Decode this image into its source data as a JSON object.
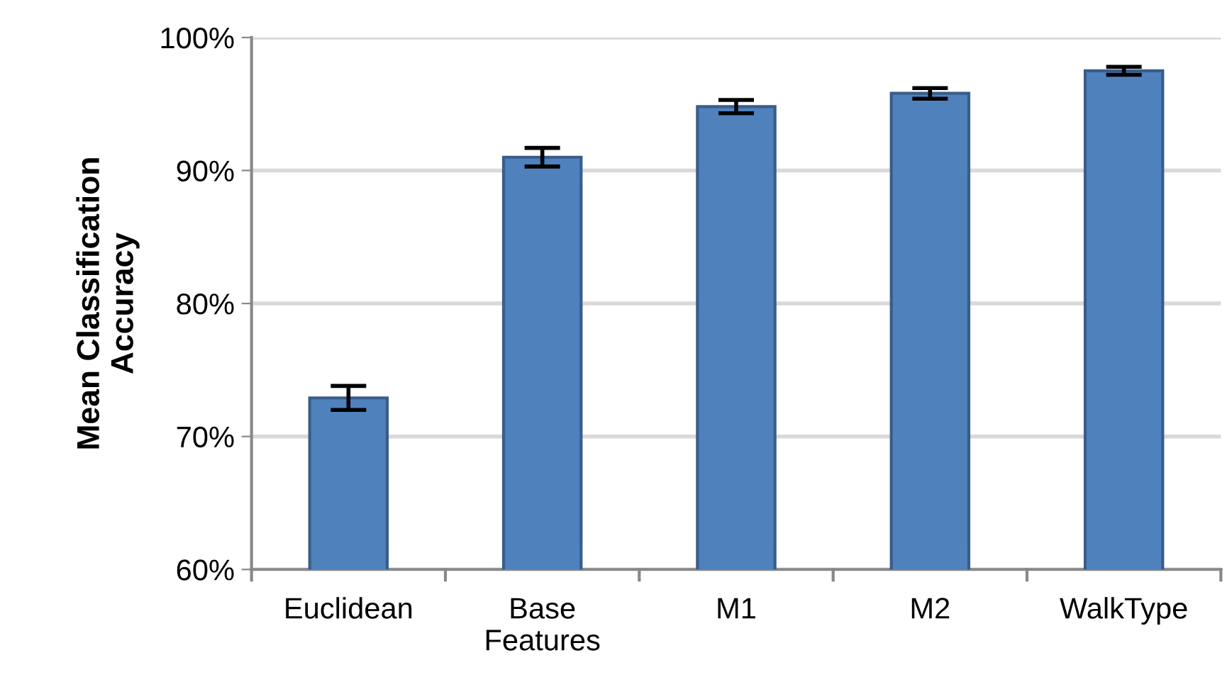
{
  "chart_data": {
    "type": "bar",
    "ylabel": "Mean Classification\nAccuracy",
    "categories": [
      "Euclidean",
      "Base\nFeatures",
      "M1",
      "M2",
      "WalkType"
    ],
    "values": [
      72.9,
      91.0,
      94.8,
      95.8,
      97.5
    ],
    "errors": [
      0.9,
      0.7,
      0.5,
      0.4,
      0.3
    ],
    "color": "#4f81bd",
    "ylim": [
      60,
      100
    ],
    "yticks": [
      {
        "value": 60,
        "label": "60%"
      },
      {
        "value": 70,
        "label": "70%"
      },
      {
        "value": 80,
        "label": "80%"
      },
      {
        "value": 90,
        "label": "90%"
      },
      {
        "value": 100,
        "label": "100%"
      }
    ],
    "grid": "y"
  }
}
